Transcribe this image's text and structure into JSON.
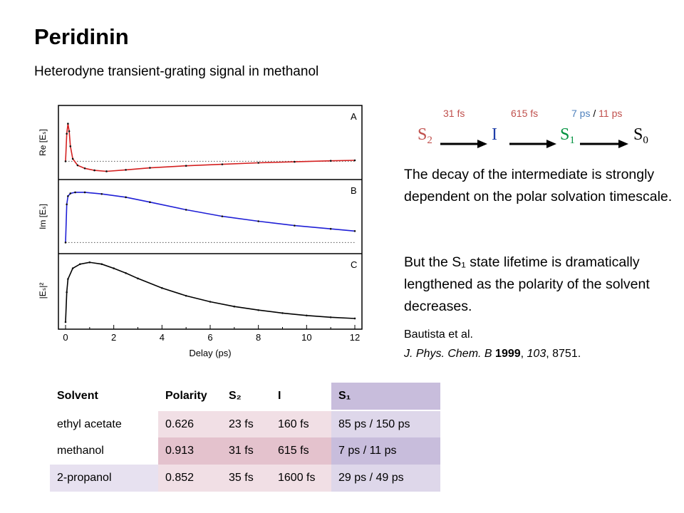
{
  "slide": {
    "title": "Peridinin",
    "subtitle": "Heterodyne transient-grating signal in methanol"
  },
  "scheme": {
    "rate1": "31 fs",
    "rate2": "615 fs",
    "rate3a": "7 ps",
    "rate3sep": "/",
    "rate3b": "11 ps",
    "states": [
      {
        "base": "S",
        "sub": "2"
      },
      {
        "base": "I",
        "sub": ""
      },
      {
        "base": "S",
        "sub": "1"
      },
      {
        "base": "S",
        "sub": "0"
      }
    ],
    "colors": {
      "rate": "#c0504d",
      "rate_blue": "#4f81bd",
      "s2": "#c0504d",
      "i": "#1f3ea8",
      "s1": "#00923f",
      "s0": "#000000"
    }
  },
  "paragraphs": {
    "p1": "The decay of the intermediate is strongly dependent on the polar solvation timescale.",
    "p2": "But the S₁ state lifetime is dramatically lengthened as the polarity of the solvent decreases."
  },
  "reference": {
    "authors": "Bautista et al.",
    "journal": "J. Phys. Chem. B",
    "year": "1999",
    "volume": "103",
    "pages": "8751."
  },
  "table": {
    "headers": [
      "Solvent",
      "Polarity",
      "S₂",
      "I",
      "S₁"
    ],
    "rows": [
      [
        "ethyl acetate",
        "0.626",
        "23 fs",
        "160 fs",
        "85 ps / 150 ps"
      ],
      [
        "methanol",
        "0.913",
        "31 fs",
        "615 fs",
        "7 ps / 11 ps"
      ],
      [
        "2-propanol",
        "0.852",
        "35 fs",
        "1600 fs",
        "29 ps / 49 ps"
      ]
    ]
  },
  "chart_data": {
    "type": "line",
    "xlabel": "Delay (ps)",
    "xlim": [
      0,
      12
    ],
    "xticks": [
      "0",
      "2",
      "4",
      "6",
      "8",
      "10",
      "12"
    ],
    "panels": [
      {
        "label": "A",
        "ylabel": "Re [Eₛ]",
        "color": "#d42020",
        "baseline": 0.0,
        "ylim": [
          -0.25,
          1.0
        ],
        "x": [
          0,
          0.05,
          0.1,
          0.15,
          0.2,
          0.3,
          0.5,
          0.8,
          1.2,
          1.7,
          2.5,
          3.5,
          5,
          6.5,
          8,
          9.5,
          11,
          12
        ],
        "y": [
          0.0,
          0.55,
          0.75,
          0.6,
          0.3,
          0.05,
          -0.08,
          -0.14,
          -0.18,
          -0.2,
          -0.17,
          -0.13,
          -0.09,
          -0.06,
          -0.03,
          -0.01,
          0.01,
          0.02
        ]
      },
      {
        "label": "B",
        "ylabel": "Im [Eₛ]",
        "color": "#1f1fd6",
        "baseline": 0.0,
        "ylim": [
          -0.1,
          1.05
        ],
        "x": [
          0,
          0.05,
          0.1,
          0.2,
          0.4,
          0.8,
          1.5,
          2.5,
          3.5,
          5,
          6.5,
          8,
          9.5,
          11,
          12
        ],
        "y": [
          0.0,
          0.7,
          0.85,
          0.9,
          0.92,
          0.92,
          0.89,
          0.83,
          0.74,
          0.6,
          0.48,
          0.39,
          0.31,
          0.25,
          0.21
        ]
      },
      {
        "label": "C",
        "ylabel": "|Eₛ|²",
        "color": "#000000",
        "baseline": 0.0,
        "ylim": [
          0.0,
          1.05
        ],
        "x": [
          0,
          0.05,
          0.1,
          0.3,
          0.6,
          1.0,
          1.5,
          2.0,
          2.5,
          3,
          4,
          5,
          6,
          7,
          8,
          9,
          10,
          11,
          12
        ],
        "y": [
          0.0,
          0.5,
          0.72,
          0.9,
          0.97,
          1.0,
          0.97,
          0.9,
          0.82,
          0.73,
          0.57,
          0.44,
          0.34,
          0.26,
          0.2,
          0.15,
          0.11,
          0.08,
          0.06
        ]
      }
    ]
  }
}
